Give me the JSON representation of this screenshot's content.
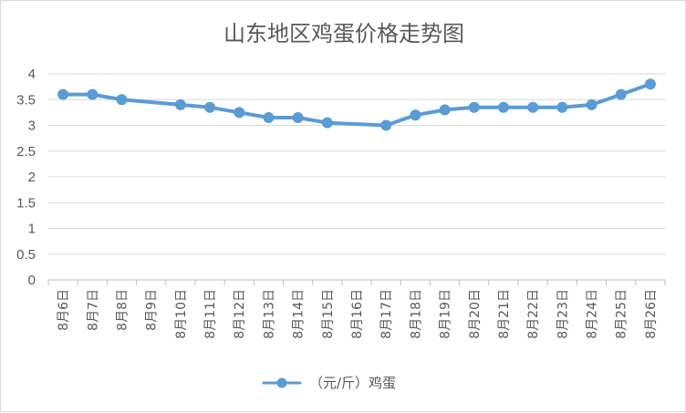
{
  "chart_data": {
    "type": "line",
    "title": "山东地区鸡蛋价格走势图",
    "categories": [
      "8月6日",
      "8月7日",
      "8月8日",
      "8月9日",
      "8月10日",
      "8月11日",
      "8月12日",
      "8月13日",
      "8月14日",
      "8月15日",
      "8月16日",
      "8月17日",
      "8月18日",
      "8月19日",
      "8月20日",
      "8月21日",
      "8月22日",
      "8月23日",
      "8月24日",
      "8月25日",
      "8月26日"
    ],
    "series": [
      {
        "name": "（元/斤）鸡蛋",
        "values": [
          3.6,
          3.6,
          3.5,
          null,
          3.4,
          3.35,
          3.25,
          3.15,
          3.15,
          3.05,
          null,
          3.0,
          3.2,
          3.3,
          3.35,
          3.35,
          3.35,
          3.35,
          3.4,
          3.6,
          3.8
        ],
        "color": "#5b9bd5"
      }
    ],
    "ylim": [
      0,
      4
    ],
    "yticks": [
      "0",
      "0.5",
      "1",
      "1.5",
      "2",
      "2.5",
      "3",
      "3.5",
      "4"
    ],
    "grid": true,
    "legend_position": "bottom"
  }
}
